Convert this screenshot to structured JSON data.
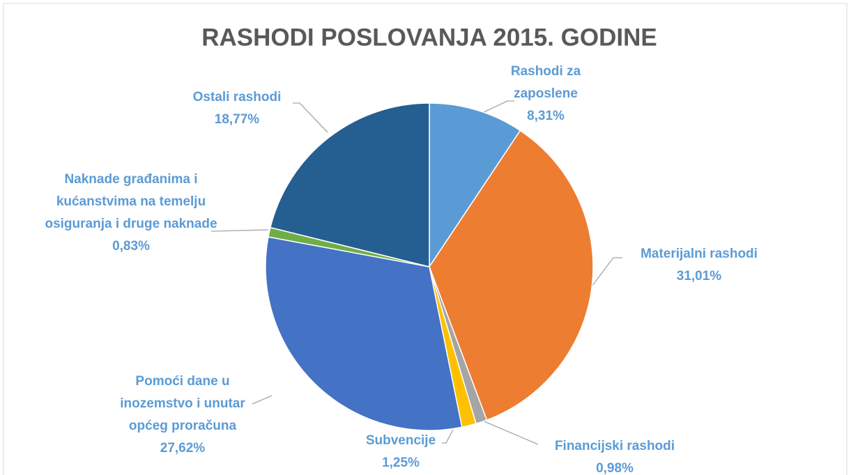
{
  "chart_data": {
    "type": "pie",
    "title": "RASHODI POSLOVANJA 2015. GODINE",
    "categories": [
      "Rashodi za zaposlene",
      "Materijalni rashodi",
      "Financijski rashodi",
      "Subvencije",
      "Pomoći dane u inozemstvo i unutar općeg proračuna",
      "Naknade građanima i kućanstvima na temelju osiguranja i druge naknade",
      "Ostali rashodi"
    ],
    "values": [
      8.31,
      31.01,
      0.98,
      1.25,
      27.62,
      0.83,
      18.77
    ],
    "value_labels": [
      "8,31%",
      "31,01%",
      "0,98%",
      "1,25%",
      "27,62%",
      "0,83%",
      "18,77%"
    ],
    "colors": [
      "#5b9bd5",
      "#ed7d31",
      "#a5a5a5",
      "#ffc000",
      "#4472c4",
      "#70ad47",
      "#255e91"
    ]
  }
}
